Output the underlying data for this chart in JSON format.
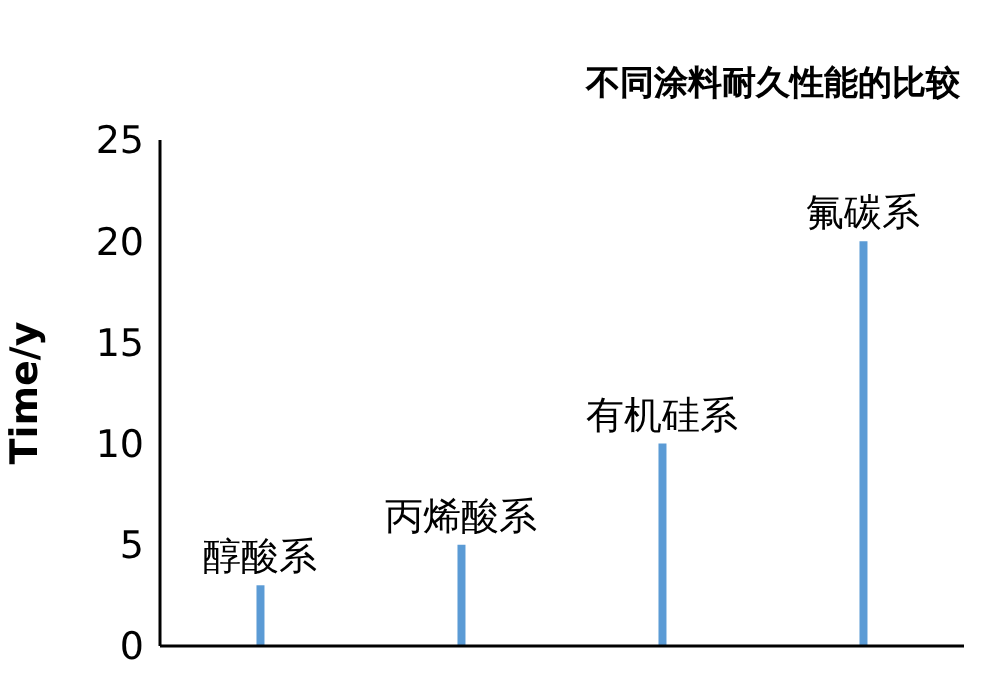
{
  "chart_data": {
    "type": "bar",
    "title": "不同涂料耐久性能的比较",
    "ylabel": "Time/y",
    "categories": [
      "醇酸系",
      "丙烯酸系",
      "有机硅系",
      "氟碳系"
    ],
    "values": [
      3,
      5,
      10,
      20
    ],
    "color": "#5b9bd5",
    "ylim": [
      0,
      25
    ],
    "yticks": [
      0,
      5,
      10,
      15,
      20,
      25
    ],
    "grid": false,
    "legend": false
  }
}
